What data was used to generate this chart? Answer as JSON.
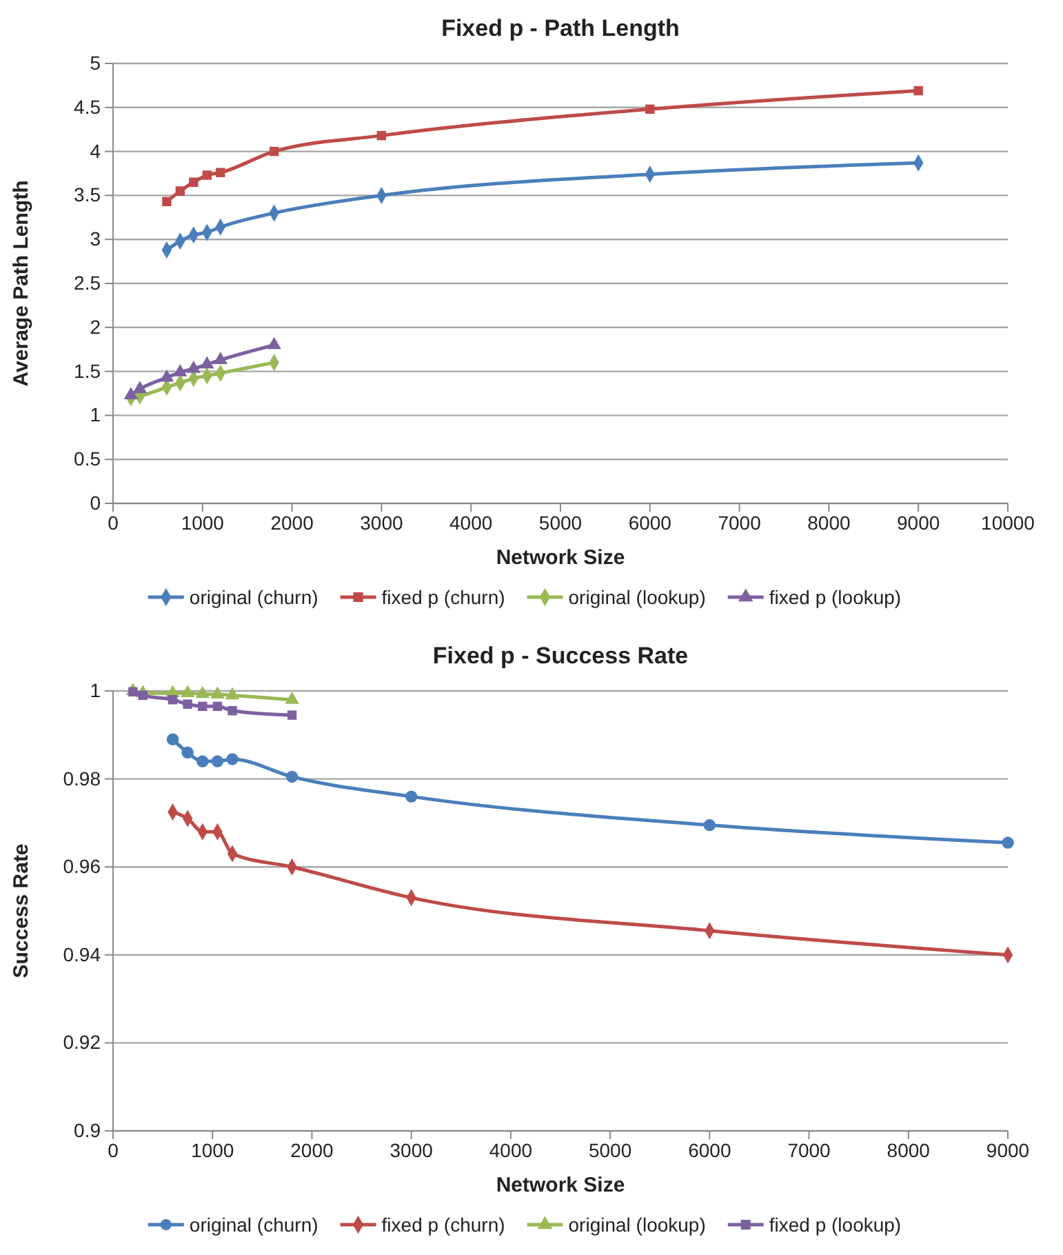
{
  "chart_data": [
    {
      "type": "line",
      "title": "Fixed p - Path Length",
      "xlabel": "Network Size",
      "ylabel": "Average Path Length",
      "xlim": [
        0,
        10000
      ],
      "xticks": [
        0,
        1000,
        2000,
        3000,
        4000,
        5000,
        6000,
        7000,
        8000,
        9000,
        10000
      ],
      "ylim": [
        0,
        5
      ],
      "yticks": [
        0,
        0.5,
        1,
        1.5,
        2,
        2.5,
        3,
        3.5,
        4,
        4.5,
        5
      ],
      "grid": "y",
      "legend": "bottom",
      "series": [
        {
          "name": "original (churn)",
          "color": "#4a7ebb",
          "marker": "diamond",
          "x": [
            600,
            750,
            900,
            1050,
            1200,
            1800,
            3000,
            6000,
            9000
          ],
          "values": [
            2.88,
            2.98,
            3.05,
            3.08,
            3.14,
            3.3,
            3.5,
            3.74,
            3.87
          ]
        },
        {
          "name": "fixed p (churn)",
          "color": "#be4b48",
          "marker": "square",
          "x": [
            600,
            750,
            900,
            1050,
            1200,
            1800,
            3000,
            6000,
            9000
          ],
          "values": [
            3.43,
            3.55,
            3.65,
            3.73,
            3.76,
            4.0,
            4.18,
            4.48,
            4.69
          ]
        },
        {
          "name": "original (lookup)",
          "color": "#98b954",
          "marker": "diamond",
          "x": [
            200,
            300,
            600,
            750,
            900,
            1050,
            1200,
            1800
          ],
          "values": [
            1.2,
            1.22,
            1.32,
            1.37,
            1.42,
            1.45,
            1.48,
            1.6
          ]
        },
        {
          "name": "fixed p (lookup)",
          "color": "#7d60a0",
          "marker": "triangle",
          "x": [
            200,
            300,
            600,
            750,
            900,
            1050,
            1200,
            1800
          ],
          "values": [
            1.23,
            1.3,
            1.43,
            1.49,
            1.53,
            1.58,
            1.63,
            1.8
          ]
        }
      ]
    },
    {
      "type": "line",
      "title": "Fixed p - Success Rate",
      "xlabel": "Network Size",
      "ylabel": "Success Rate",
      "xlim": [
        0,
        9000
      ],
      "xticks": [
        0,
        1000,
        2000,
        3000,
        4000,
        5000,
        6000,
        7000,
        8000,
        9000
      ],
      "ylim": [
        0.9,
        1
      ],
      "yticks": [
        0.9,
        0.92,
        0.94,
        0.96,
        0.98,
        1
      ],
      "grid": "y",
      "legend": "bottom",
      "series": [
        {
          "name": "original (churn)",
          "color": "#4a7ebb",
          "marker": "circle",
          "x": [
            600,
            750,
            900,
            1050,
            1200,
            1800,
            3000,
            6000,
            9000
          ],
          "values": [
            0.989,
            0.986,
            0.984,
            0.984,
            0.9845,
            0.9805,
            0.976,
            0.9695,
            0.9655
          ]
        },
        {
          "name": "fixed p (churn)",
          "color": "#be4b48",
          "marker": "diamond",
          "x": [
            600,
            750,
            900,
            1050,
            1200,
            1800,
            3000,
            6000,
            9000
          ],
          "values": [
            0.9725,
            0.971,
            0.968,
            0.968,
            0.963,
            0.96,
            0.953,
            0.9455,
            0.94
          ]
        },
        {
          "name": "original (lookup)",
          "color": "#98b954",
          "marker": "triangle",
          "x": [
            200,
            300,
            600,
            750,
            900,
            1050,
            1200,
            1800
          ],
          "values": [
            1.0,
            0.9995,
            0.9995,
            0.9995,
            0.9993,
            0.9992,
            0.999,
            0.998
          ]
        },
        {
          "name": "fixed p (lookup)",
          "color": "#7d60a0",
          "marker": "square",
          "x": [
            200,
            300,
            600,
            750,
            900,
            1050,
            1200,
            1800
          ],
          "values": [
            0.9998,
            0.999,
            0.998,
            0.997,
            0.9965,
            0.9965,
            0.9955,
            0.9945
          ]
        }
      ]
    }
  ]
}
